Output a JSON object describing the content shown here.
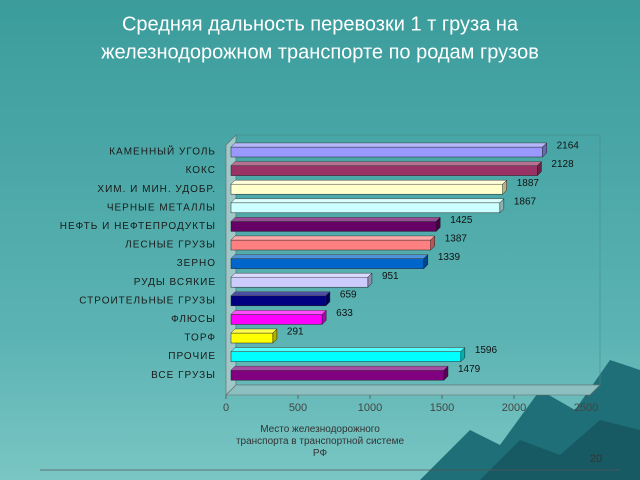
{
  "chart_data": {
    "type": "bar3d",
    "title": [
      "Средняя дальность перевозки 1 т груза на",
      "железнодорожном транспорте по родам грузов"
    ],
    "categories": [
      "КАМЕННЫЙ УГОЛЬ",
      "КОКС",
      "ХИМ. И МИН. УДОБР.",
      "ЧЕРНЫЕ МЕТАЛЛЫ",
      "НЕФТЬ И НЕФТЕПРОДУКТЫ",
      "ЛЕСНЫЕ ГРУЗЫ",
      "ЗЕРНО",
      "РУДЫ ВСЯКИЕ",
      "СТРОИТЕЛЬНЫЕ ГРУЗЫ",
      "ФЛЮСЫ",
      "ТОРФ",
      "ПРОЧИЕ",
      "ВСЕ ГРУЗЫ"
    ],
    "values": [
      2164,
      2128,
      1887,
      1867,
      1425,
      1387,
      1339,
      951,
      659,
      633,
      291,
      1596,
      1479
    ],
    "colors": [
      "#9999ff",
      "#993366",
      "#ffffcc",
      "#ccffff",
      "#660066",
      "#ff8080",
      "#0066cc",
      "#ccccff",
      "#000080",
      "#ff00ff",
      "#ffff00",
      "#00ffff",
      "#800080"
    ],
    "xlim": [
      0,
      2500
    ],
    "xticks": [
      0,
      500,
      1000,
      1500,
      2000,
      2500
    ],
    "grid": false
  },
  "footer": {
    "text": "Место железнодорожного транспорта в транспортной системе РФ",
    "page_number": "20"
  }
}
